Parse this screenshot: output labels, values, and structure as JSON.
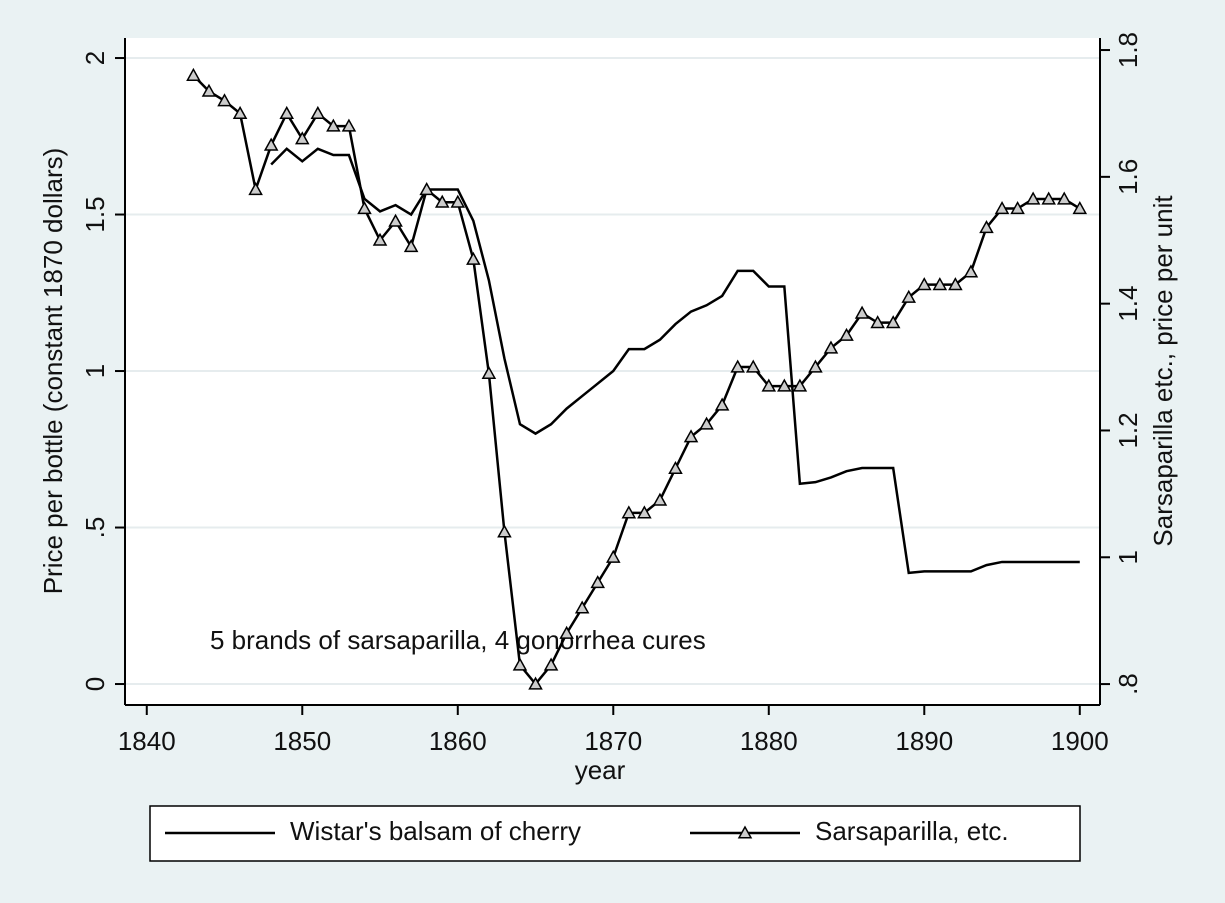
{
  "chart_data": {
    "type": "line",
    "x_label": "year",
    "y_label": "Price per bottle (constant 1870 dollars)",
    "y2_label": "Sarsaparilla etc., price per unit",
    "annotation": "5 brands of sarsaparilla, 4 gonorrhea cures",
    "x": [
      1843,
      1844,
      1845,
      1846,
      1847,
      1848,
      1849,
      1850,
      1851,
      1852,
      1853,
      1854,
      1855,
      1856,
      1857,
      1858,
      1859,
      1860,
      1861,
      1862,
      1863,
      1864,
      1865,
      1866,
      1867,
      1868,
      1869,
      1870,
      1871,
      1872,
      1873,
      1874,
      1875,
      1876,
      1877,
      1878,
      1879,
      1880,
      1881,
      1882,
      1883,
      1884,
      1885,
      1886,
      1887,
      1888,
      1889,
      1890,
      1891,
      1892,
      1893,
      1894,
      1895,
      1896,
      1897,
      1898,
      1899,
      1900
    ],
    "series": [
      {
        "name": "Wistar's balsam of cherry",
        "color": "#000000",
        "marker": "none",
        "values": [
          null,
          null,
          null,
          null,
          null,
          1.66,
          1.71,
          1.67,
          1.71,
          1.69,
          1.69,
          1.55,
          1.51,
          1.53,
          1.5,
          1.58,
          1.58,
          1.58,
          1.48,
          1.29,
          1.04,
          0.83,
          0.8,
          0.83,
          0.88,
          0.92,
          0.96,
          1.0,
          1.07,
          1.07,
          1.1,
          1.15,
          1.19,
          1.21,
          1.24,
          1.32,
          1.32,
          1.27,
          1.27,
          0.64,
          0.645,
          0.66,
          0.68,
          0.69,
          0.69,
          0.69,
          0.355,
          0.36,
          0.36,
          0.36,
          0.36,
          0.38,
          0.39,
          0.39,
          0.39,
          0.39,
          0.39,
          0.39
        ]
      },
      {
        "name": "Sarsaparilla, etc.",
        "color": "#000000",
        "marker": "triangle",
        "axis": "y2",
        "values": [
          1.76,
          1.735,
          1.72,
          1.7,
          1.58,
          1.65,
          1.7,
          1.66,
          1.7,
          1.68,
          1.68,
          1.55,
          1.5,
          1.53,
          1.49,
          1.58,
          1.56,
          1.56,
          1.47,
          1.29,
          1.04,
          0.83,
          0.8,
          0.83,
          0.88,
          0.92,
          0.96,
          1.0,
          1.07,
          1.07,
          1.09,
          1.14,
          1.19,
          1.21,
          1.24,
          1.3,
          1.3,
          1.27,
          1.27,
          1.27,
          1.3,
          1.33,
          1.35,
          1.385,
          1.37,
          1.37,
          1.41,
          1.43,
          1.43,
          1.43,
          1.45,
          1.52,
          1.55,
          1.55,
          1.565,
          1.565,
          1.565,
          1.55
        ]
      }
    ],
    "xlim": [
      1838.6,
      1901.3
    ],
    "xticks": [
      1840,
      1850,
      1860,
      1870,
      1880,
      1890,
      1900
    ],
    "ylim": [
      -0.067,
      2.064
    ],
    "yticks": [
      0,
      {
        "value": 0.5,
        "label": ".5"
      },
      1,
      1.5,
      2
    ],
    "y2lim": [
      0.767,
      1.819
    ],
    "y2ticks": [
      {
        "value": 0.8,
        "label": ".8"
      },
      1,
      1.2,
      1.4,
      1.6,
      1.8
    ],
    "grid": true,
    "legend": "bottom"
  }
}
